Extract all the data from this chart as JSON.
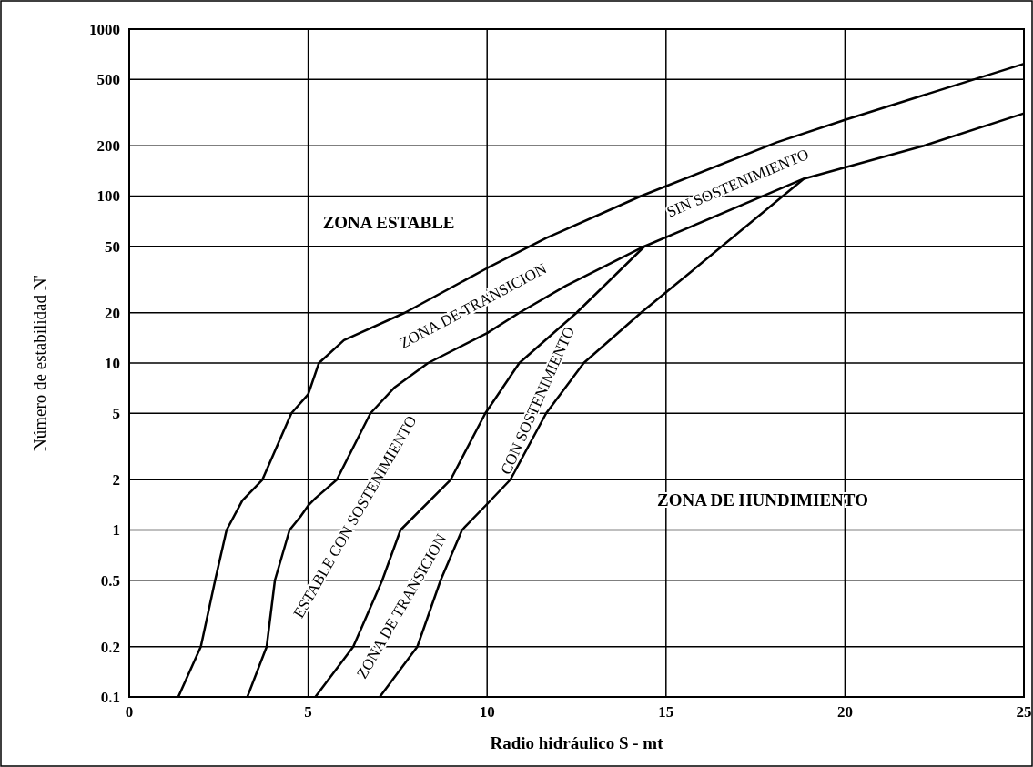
{
  "chart_data": {
    "type": "line",
    "xlabel": "Radio hidráulico S - mt",
    "ylabel": "Número de estabilidad N'",
    "xlim": [
      0,
      25
    ],
    "xticks": [
      0,
      5,
      10,
      15,
      20,
      25
    ],
    "ylim": [
      0.1,
      1000
    ],
    "yticks": [
      0.1,
      0.2,
      0.5,
      1,
      2,
      5,
      10,
      20,
      50,
      100,
      200,
      500,
      1000
    ],
    "log": "y",
    "grid": true,
    "marker": "none",
    "line_style": "solid",
    "series": [
      {
        "color": "#000000",
        "x": [
          1.37,
          2.0,
          2.4,
          2.72,
          3.16,
          3.72,
          4.53,
          5.0,
          5.3,
          6.0,
          7.7,
          10.0,
          11.65,
          14.3,
          18.1,
          20.0,
          25.0
        ],
        "values": [
          0.1,
          0.2,
          0.5,
          1,
          1.5,
          2,
          5,
          6.5,
          10,
          13.7,
          20,
          37,
          56,
          100,
          210,
          286,
          620
        ]
      },
      {
        "color": "#000000",
        "x": [
          3.3,
          3.84,
          4.07,
          4.48,
          4.78,
          5.0,
          5.2,
          5.8,
          6.74,
          7.4,
          8.35,
          10.0,
          10.9,
          12.2,
          14.4,
          18.85,
          22.2,
          25.0
        ],
        "values": [
          0.1,
          0.2,
          0.5,
          1,
          1.2,
          1.4,
          1.55,
          2,
          5,
          7.1,
          10,
          15.1,
          20,
          29,
          50,
          127,
          200,
          313
        ]
      },
      {
        "color": "#000000",
        "x": [
          5.2,
          6.26,
          7.07,
          7.58,
          8.98,
          9.95,
          10.9,
          12.5,
          14.4
        ],
        "values": [
          0.1,
          0.2,
          0.5,
          1,
          2,
          5,
          10,
          20,
          50
        ]
      },
      {
        "color": "#000000",
        "x": [
          7.0,
          8.05,
          8.7,
          9.3,
          10.0,
          10.65,
          11.65,
          12.7,
          14.3,
          15.0,
          18.85
        ],
        "values": [
          0.1,
          0.2,
          0.5,
          1,
          1.43,
          2,
          5,
          10,
          20,
          26.5,
          127
        ]
      }
    ],
    "annotations": [
      "ZONA ESTABLE",
      "ZONA DE TRANSICION",
      "SIN SOSTENIMIENTO",
      "ESTABLE CON SOSTENIMIENTO",
      "ZONA DE TRANSICION",
      "CON SOSTENIMIENTO",
      "ZONA DE HUNDIMIENTO"
    ]
  }
}
